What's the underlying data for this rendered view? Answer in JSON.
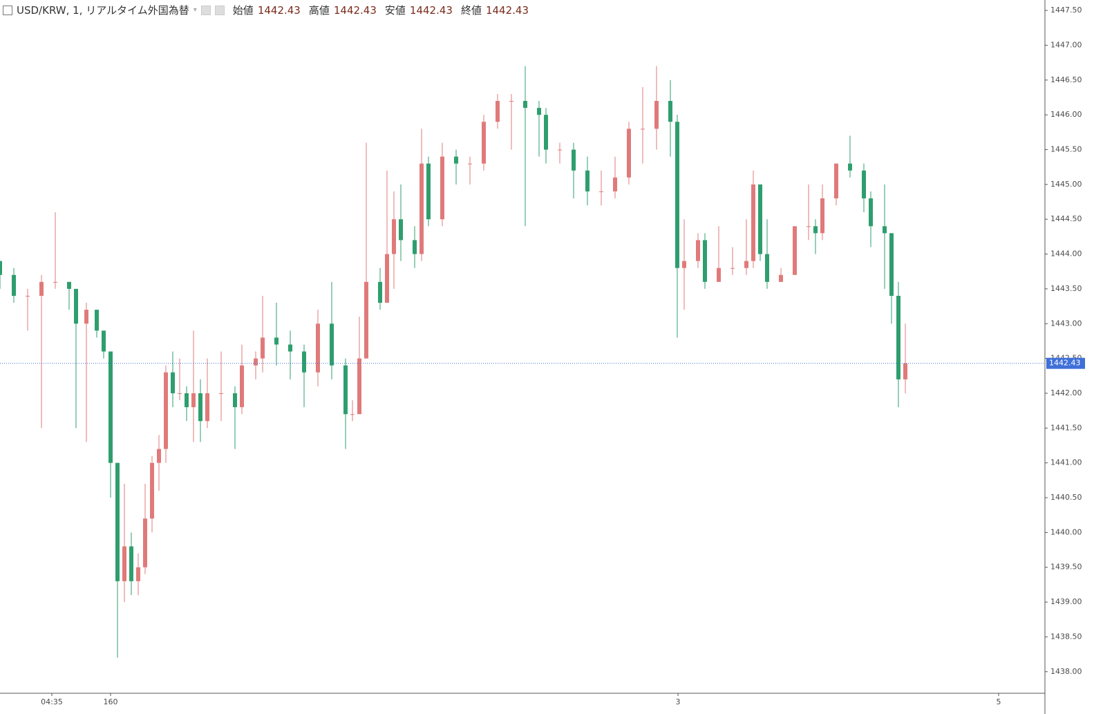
{
  "chart_data": {
    "type": "candlestick",
    "title": "USD/KRW, 1, リアルタイム外国為替",
    "legend_ohlc": [
      {
        "label": "始値",
        "value": 1442.43
      },
      {
        "label": "高値",
        "value": 1442.43
      },
      {
        "label": "安値",
        "value": 1442.43
      },
      {
        "label": "終値",
        "value": 1442.43
      }
    ],
    "last_price": 1442.43,
    "up_color": "#e07a7a",
    "down_color": "#2e9e6e",
    "price_line_color": "#3f6fd8",
    "xlim": [
      0,
      1512
    ],
    "xticks": [
      {
        "value": 75,
        "label": "04:35"
      },
      160,
      {
        "value": 981,
        "label": 3
      },
      {
        "value": 1445,
        "label": 5
      }
    ],
    "ylim": [
      1437.69,
      1447.65
    ],
    "yticks": [
      {
        "value": 1438,
        "label": "1438.00"
      },
      {
        "value": 1438.5,
        "label": "1438.50"
      },
      {
        "value": 1439,
        "label": "1439.00"
      },
      {
        "value": 1439.5,
        "label": "1439.50"
      },
      {
        "value": 1440,
        "label": "1440.00"
      },
      {
        "value": 1440.5,
        "label": "1440.50"
      },
      {
        "value": 1441,
        "label": "1441.00"
      },
      {
        "value": 1441.5,
        "label": "1441.50"
      },
      {
        "value": 1442,
        "label": "1442.00"
      },
      {
        "value": 1442.5,
        "label": "1442.50"
      },
      {
        "value": 1443,
        "label": "1443.00"
      },
      {
        "value": 1443.5,
        "label": "1443.50"
      },
      {
        "value": 1444,
        "label": "1444.00"
      },
      {
        "value": 1444.5,
        "label": "1444.50"
      },
      {
        "value": 1445,
        "label": "1445.00"
      },
      {
        "value": 1445.5,
        "label": "1445.50"
      },
      {
        "value": 1446,
        "label": "1446.00"
      },
      {
        "value": 1446.5,
        "label": "1446.50"
      },
      {
        "value": 1447,
        "label": "1447.00"
      },
      {
        "value": 1447.5,
        "label": "1447.50"
      }
    ],
    "x": [
      0,
      20,
      40,
      60,
      80,
      100,
      110,
      125,
      140,
      150,
      160,
      170,
      180,
      190,
      200,
      210,
      220,
      230,
      240,
      250,
      260,
      270,
      280,
      290,
      300,
      320,
      340,
      350,
      370,
      380,
      400,
      420,
      440,
      460,
      480,
      500,
      510,
      520,
      530,
      550,
      560,
      570,
      580,
      600,
      610,
      620,
      640,
      660,
      680,
      700,
      720,
      740,
      760,
      780,
      790,
      810,
      830,
      850,
      870,
      890,
      910,
      930,
      950,
      970,
      980,
      990,
      1010,
      1020,
      1040,
      1060,
      1080,
      1090,
      1100,
      1110,
      1130,
      1150,
      1170,
      1180,
      1190,
      1210,
      1230,
      1250,
      1260,
      1280,
      1290,
      1300,
      1310
    ],
    "open": [
      1443.9,
      1443.7,
      1443.4,
      1443.4,
      1443.6,
      1443.6,
      1443.5,
      1443.0,
      1443.2,
      1442.9,
      1442.6,
      1441.0,
      1439.3,
      1439.8,
      1439.3,
      1439.5,
      1440.2,
      1441.0,
      1441.2,
      1442.3,
      1442.0,
      1442.0,
      1441.8,
      1442.0,
      1441.6,
      1442.0,
      1442.0,
      1441.8,
      1442.4,
      1442.5,
      1442.8,
      1442.7,
      1442.6,
      1442.3,
      1443.0,
      1442.4,
      1441.7,
      1441.7,
      1442.5,
      1443.6,
      1443.3,
      1444.0,
      1444.5,
      1444.2,
      1444.0,
      1445.3,
      1444.5,
      1445.4,
      1445.3,
      1445.3,
      1445.9,
      1446.2,
      1446.2,
      1446.1,
      1446.0,
      1445.5,
      1445.5,
      1445.2,
      1444.9,
      1444.9,
      1445.1,
      1445.8,
      1445.8,
      1446.2,
      1445.9,
      1443.8,
      1443.9,
      1444.2,
      1443.6,
      1443.8,
      1443.8,
      1443.9,
      1445.0,
      1444.0,
      1443.6,
      1443.7,
      1444.4,
      1444.4,
      1444.3,
      1444.8,
      1445.3,
      1445.2,
      1444.8,
      1444.4,
      1444.3,
      1443.4,
      1442.2
    ],
    "high": [
      1443.9,
      1443.8,
      1443.5,
      1443.7,
      1444.6,
      1443.6,
      1443.5,
      1443.3,
      1443.2,
      1442.9,
      1442.6,
      1441.0,
      1440.7,
      1440.0,
      1439.7,
      1440.7,
      1441.1,
      1441.4,
      1442.4,
      1442.6,
      1442.5,
      1442.1,
      1442.9,
      1442.2,
      1442.5,
      1442.6,
      1442.1,
      1442.7,
      1442.6,
      1443.4,
      1443.3,
      1442.9,
      1442.7,
      1443.2,
      1443.6,
      1442.5,
      1441.9,
      1443.1,
      1445.6,
      1443.8,
      1445.2,
      1444.9,
      1445.0,
      1444.4,
      1445.8,
      1445.4,
      1445.6,
      1445.5,
      1445.4,
      1446.0,
      1446.3,
      1446.3,
      1446.7,
      1446.2,
      1446.1,
      1445.6,
      1445.6,
      1445.4,
      1445.2,
      1445.4,
      1445.9,
      1446.4,
      1446.7,
      1446.5,
      1446.0,
      1444.5,
      1444.3,
      1444.3,
      1444.4,
      1444.1,
      1444.5,
      1445.2,
      1445.0,
      1444.5,
      1443.8,
      1444.4,
      1445.0,
      1444.5,
      1445.0,
      1445.3,
      1445.7,
      1445.3,
      1444.9,
      1445.0,
      1444.3,
      1443.6,
      1443.0
    ],
    "low": [
      1443.5,
      1443.3,
      1442.9,
      1441.5,
      1443.5,
      1443.2,
      1441.5,
      1441.3,
      1442.8,
      1442.5,
      1440.5,
      1438.2,
      1439.0,
      1439.1,
      1439.1,
      1439.4,
      1440.0,
      1440.6,
      1441.0,
      1441.8,
      1441.9,
      1441.6,
      1441.3,
      1441.3,
      1441.5,
      1441.6,
      1441.2,
      1441.7,
      1442.2,
      1442.3,
      1442.4,
      1442.2,
      1441.8,
      1442.1,
      1442.2,
      1441.2,
      1441.6,
      1441.7,
      1442.5,
      1443.2,
      1443.3,
      1443.5,
      1443.9,
      1443.8,
      1443.9,
      1444.4,
      1444.4,
      1445.0,
      1445.0,
      1445.2,
      1445.8,
      1445.5,
      1444.4,
      1445.4,
      1445.3,
      1445.3,
      1444.8,
      1444.7,
      1444.7,
      1444.8,
      1445.0,
      1445.3,
      1445.5,
      1445.4,
      1442.8,
      1443.2,
      1443.8,
      1443.5,
      1443.6,
      1443.7,
      1443.7,
      1443.8,
      1443.9,
      1443.5,
      1443.6,
      1443.7,
      1444.2,
      1444.0,
      1444.2,
      1444.7,
      1445.1,
      1444.6,
      1444.1,
      1443.5,
      1443.0,
      1441.8,
      1442.0
    ],
    "close": [
      1443.7,
      1443.4,
      1443.4,
      1443.6,
      1443.6,
      1443.5,
      1443.0,
      1443.2,
      1442.9,
      1442.6,
      1441.0,
      1439.3,
      1439.8,
      1439.3,
      1439.5,
      1440.2,
      1441.0,
      1441.2,
      1442.3,
      1442.0,
      1442.0,
      1441.8,
      1442.0,
      1441.6,
      1442.0,
      1442.0,
      1441.8,
      1442.4,
      1442.5,
      1442.8,
      1442.7,
      1442.6,
      1442.3,
      1443.0,
      1442.4,
      1441.7,
      1441.7,
      1442.5,
      1443.6,
      1443.3,
      1444.0,
      1444.5,
      1444.2,
      1444.0,
      1445.3,
      1444.5,
      1445.4,
      1445.3,
      1445.3,
      1445.9,
      1446.2,
      1446.2,
      1446.1,
      1446.0,
      1445.5,
      1445.5,
      1445.2,
      1444.9,
      1444.9,
      1445.1,
      1445.8,
      1445.8,
      1446.2,
      1445.9,
      1443.8,
      1443.9,
      1444.2,
      1443.6,
      1443.8,
      1443.8,
      1443.9,
      1445.0,
      1444.0,
      1443.6,
      1443.7,
      1444.4,
      1444.4,
      1444.3,
      1444.8,
      1445.3,
      1445.2,
      1444.8,
      1444.4,
      1444.3,
      1443.4,
      1442.2,
      1442.43
    ]
  }
}
